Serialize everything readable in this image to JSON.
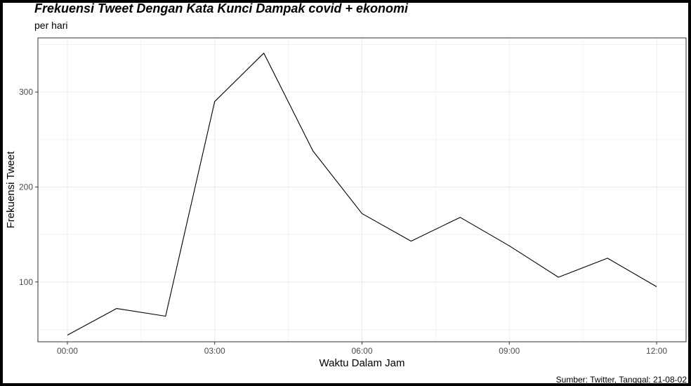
{
  "chart_data": {
    "type": "line",
    "title": "Frekuensi Tweet Dengan Kata Kunci Dampak covid + ekonomi",
    "subtitle": "per hari",
    "xlabel": "Waktu Dalam Jam",
    "ylabel": "Frekuensi Tweet",
    "caption": "Sumber: Twitter, Tanggal: 21-08-02",
    "x_ticks": [
      "00:00",
      "03:00",
      "06:00",
      "09:00",
      "12:00"
    ],
    "x_tick_hours": [
      0,
      3,
      6,
      9,
      12
    ],
    "y_ticks": [
      100,
      200,
      300
    ],
    "xlim": [
      -0.6,
      12.6
    ],
    "ylim": [
      37,
      357
    ],
    "grid": true,
    "series": [
      {
        "x": [
          0,
          1,
          2,
          3,
          4,
          5,
          6,
          7,
          8,
          9,
          10,
          11,
          12
        ],
        "y": [
          44,
          72,
          64,
          290,
          341,
          238,
          172,
          143,
          168,
          138,
          105,
          125,
          95
        ]
      }
    ],
    "line_color": "#000000",
    "grid_color": "#ebebeb"
  }
}
